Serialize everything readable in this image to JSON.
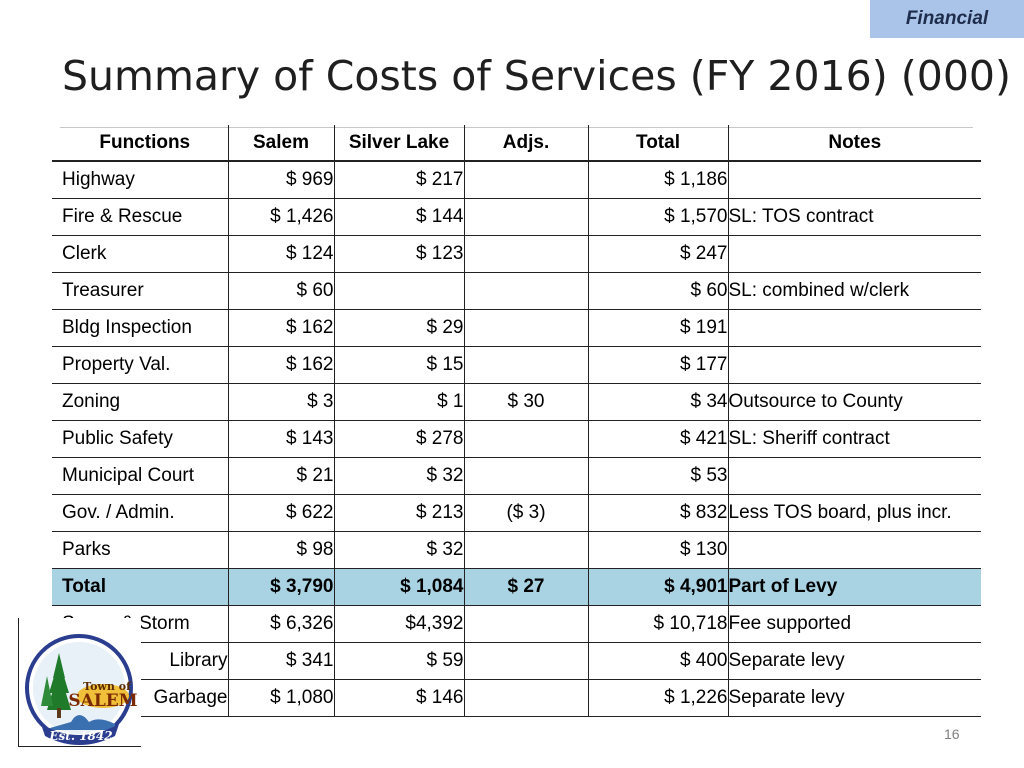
{
  "header": {
    "tag": "Financial",
    "title": "Summary of Costs of Services (FY 2016) (000)"
  },
  "table": {
    "columns": [
      "Functions",
      "Salem",
      "Silver Lake",
      "Adjs.",
      "Total",
      "Notes"
    ],
    "rows": [
      {
        "function": "Highway",
        "salem": "$ 969",
        "silver_lake": "$ 217",
        "adjs": "",
        "total": "$ 1,186",
        "notes": ""
      },
      {
        "function": "Fire & Rescue",
        "salem": "$ 1,426",
        "silver_lake": "$ 144",
        "adjs": "",
        "total": "$ 1,570",
        "notes": "SL: TOS contract"
      },
      {
        "function": "Clerk",
        "salem": "$ 124",
        "silver_lake": "$ 123",
        "adjs": "",
        "total": "$ 247",
        "notes": ""
      },
      {
        "function": "Treasurer",
        "salem": "$ 60",
        "silver_lake": "",
        "adjs": "",
        "total": "$ 60",
        "notes": "SL: combined w/clerk"
      },
      {
        "function": "Bldg Inspection",
        "salem": "$ 162",
        "silver_lake": "$ 29",
        "adjs": "",
        "total": "$ 191",
        "notes": ""
      },
      {
        "function": "Property Val.",
        "salem": "$ 162",
        "silver_lake": "$ 15",
        "adjs": "",
        "total": "$ 177",
        "notes": ""
      },
      {
        "function": "Zoning",
        "salem": "$ 3",
        "silver_lake": "$ 1",
        "adjs": "$ 30",
        "total": "$ 34",
        "notes": "Outsource to County"
      },
      {
        "function": "Public Safety",
        "salem": "$ 143",
        "silver_lake": "$ 278",
        "adjs": "",
        "total": "$ 421",
        "notes": "SL: Sheriff contract"
      },
      {
        "function": "Municipal Court",
        "salem": "$ 21",
        "silver_lake": "$ 32",
        "adjs": "",
        "total": "$ 53",
        "notes": ""
      },
      {
        "function": "Gov. /  Admin.",
        "salem": "$ 622",
        "silver_lake": "$ 213",
        "adjs": "($ 3)",
        "total": "$ 832",
        "notes": "Less TOS board, plus incr."
      },
      {
        "function": "Parks",
        "salem": "$ 98",
        "silver_lake": "$ 32",
        "adjs": "",
        "total": "$ 130",
        "notes": ""
      }
    ],
    "total_row": {
      "function": "Total",
      "salem": "$ 3,790",
      "silver_lake": "$ 1,084",
      "adjs": "$ 27",
      "total": "$ 4,901",
      "notes": "Part of Levy"
    },
    "extra_rows": [
      {
        "function": "Sewer & Storm",
        "salem": "$ 6,326",
        "silver_lake": "$4,392",
        "adjs": "",
        "total": "$ 10,718",
        "notes": "Fee supported"
      },
      {
        "function": "Library",
        "salem": "$ 341",
        "silver_lake": "$ 59",
        "adjs": "",
        "total": "$ 400",
        "notes": "Separate levy"
      },
      {
        "function": "Garbage",
        "salem": "$ 1,080",
        "silver_lake": "$ 146",
        "adjs": "",
        "total": "$ 1,226",
        "notes": "Separate levy"
      }
    ]
  },
  "logo": {
    "line1": "Town of",
    "line2": "SALEM",
    "line3": "Est. 1842"
  },
  "footer": {
    "page_number": "16"
  },
  "colors": {
    "tag_bg": "#a9c4e8",
    "total_row_bg": "#a9d3e3",
    "text": "#000000"
  }
}
